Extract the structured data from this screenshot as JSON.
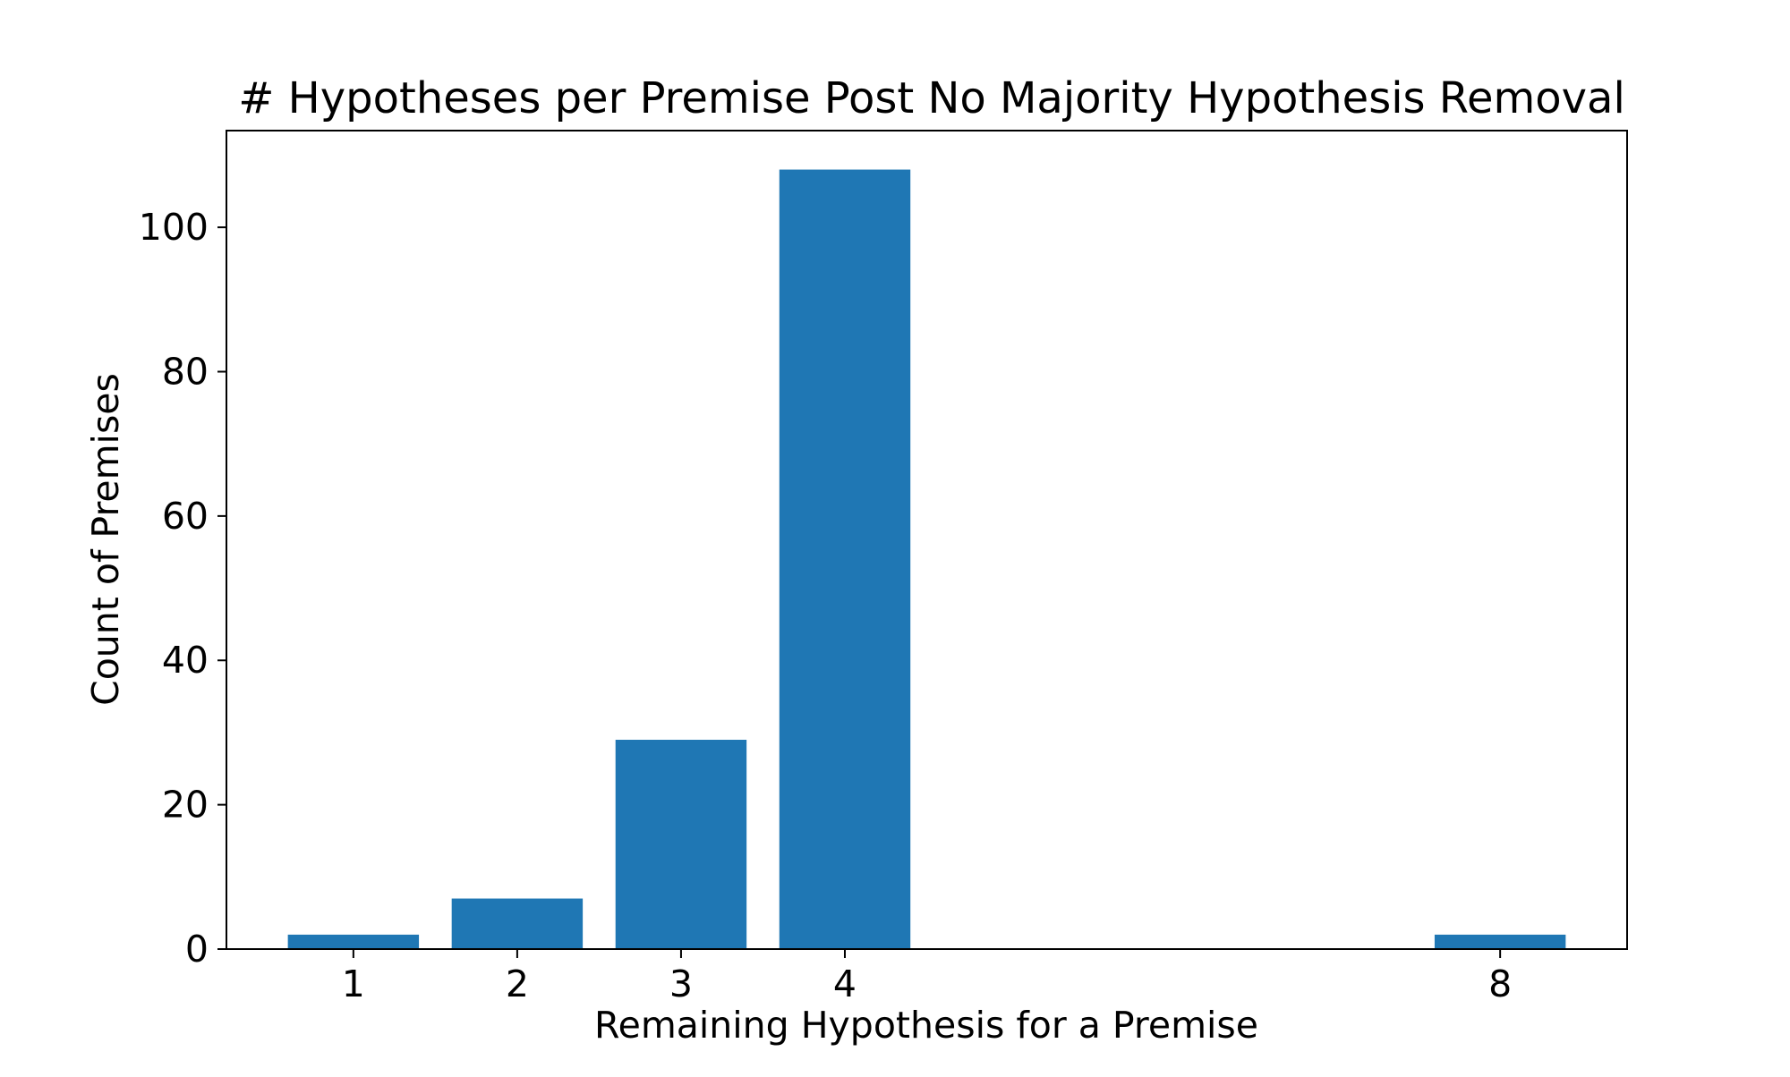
{
  "chart_data": {
    "type": "bar",
    "title": "# Hypotheses per Premise Post No Majority Hypothesis Removal",
    "xlabel": "Remaining Hypothesis for a Premise",
    "ylabel": "Count of Premises",
    "x": [
      1,
      2,
      3,
      4,
      8
    ],
    "values": [
      2,
      7,
      29,
      108,
      2
    ],
    "x_ticks": [
      "1",
      "2",
      "3",
      "4",
      "8"
    ],
    "y_ticks": [
      0,
      20,
      40,
      60,
      80,
      100
    ],
    "xlim": [
      0.225,
      8.775
    ],
    "ylim": [
      0,
      113.4
    ],
    "bar_width": 0.8,
    "bar_color": "#1f77b4",
    "grid": false,
    "legend": "none"
  }
}
